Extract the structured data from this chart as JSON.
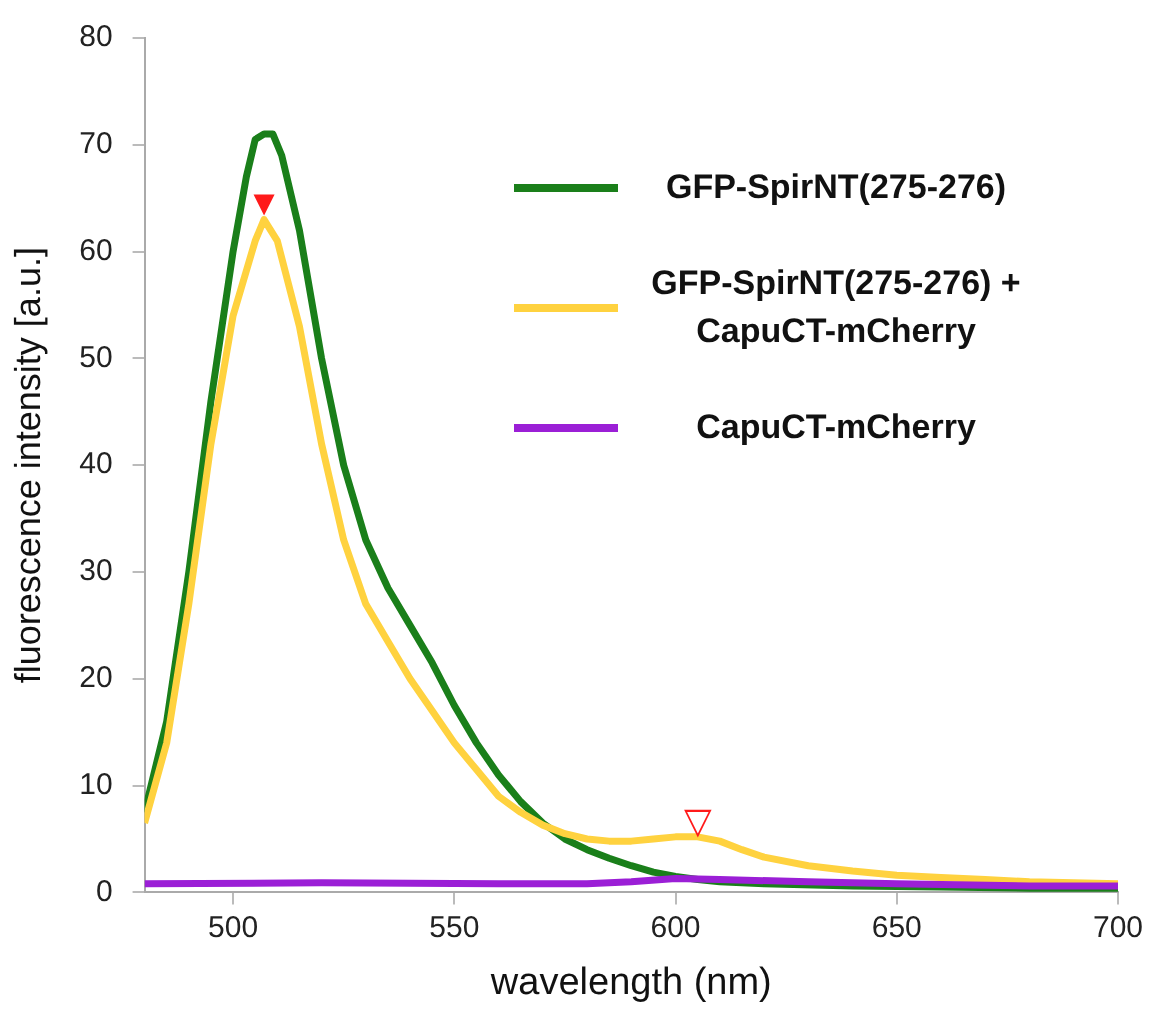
{
  "chart_data": {
    "type": "line",
    "xlabel": "wavelength (nm)",
    "ylabel": "fluorescence intensity [a.u.]",
    "xlim": [
      480,
      700
    ],
    "xticks": [
      500,
      550,
      600,
      650,
      700
    ],
    "ylim": [
      0,
      80
    ],
    "yticks": [
      0,
      10,
      20,
      30,
      40,
      50,
      60,
      70,
      80
    ],
    "grid": false,
    "legend": "top right",
    "marker": "none",
    "line_style": "solid",
    "series": [
      {
        "name": "GFP-SpirNT(275-276)",
        "color": "#1a7f1a",
        "x": [
          480,
          485,
          490,
          495,
          500,
          503,
          505,
          507,
          509,
          511,
          515,
          520,
          525,
          530,
          535,
          540,
          545,
          550,
          555,
          560,
          565,
          570,
          575,
          580,
          585,
          590,
          595,
          600,
          605,
          610,
          620,
          640,
          660,
          680,
          700
        ],
        "values": [
          7.5,
          16,
          30,
          46,
          60,
          67,
          70.5,
          71,
          71,
          69,
          62,
          50,
          40,
          33,
          28.5,
          25,
          21.5,
          17.5,
          14,
          11,
          8.5,
          6.5,
          5,
          4,
          3.2,
          2.5,
          1.9,
          1.5,
          1.2,
          1,
          0.8,
          0.6,
          0.5,
          0.4,
          0.4
        ]
      },
      {
        "name": "GFP-SpirNT(275-276) + CapuCT-mCherry",
        "color": "#ffd23f",
        "x": [
          480,
          485,
          490,
          495,
          500,
          505,
          507,
          510,
          515,
          520,
          525,
          530,
          535,
          540,
          545,
          550,
          555,
          560,
          565,
          570,
          575,
          580,
          585,
          590,
          595,
          600,
          605,
          610,
          615,
          620,
          630,
          640,
          650,
          660,
          670,
          680,
          690,
          700
        ],
        "values": [
          6.5,
          14,
          27,
          42,
          54,
          61,
          63,
          61,
          53,
          42,
          33,
          27,
          23.5,
          20,
          17,
          14,
          11.5,
          9,
          7.5,
          6.3,
          5.5,
          5,
          4.8,
          4.8,
          5,
          5.2,
          5.2,
          4.8,
          4,
          3.3,
          2.5,
          2,
          1.6,
          1.4,
          1.2,
          1,
          0.9,
          0.8
        ]
      },
      {
        "name": "CapuCT-mCherry",
        "color": "#9b1fd6",
        "x": [
          480,
          520,
          560,
          580,
          590,
          600,
          610,
          630,
          650,
          680,
          700
        ],
        "values": [
          0.8,
          0.9,
          0.8,
          0.8,
          1,
          1.3,
          1.2,
          1,
          0.8,
          0.6,
          0.6
        ]
      }
    ],
    "annotations": [
      {
        "text": "▼",
        "x": 507,
        "y": 63
      },
      {
        "text": "▽",
        "x": 605,
        "y": 5.2
      }
    ]
  }
}
